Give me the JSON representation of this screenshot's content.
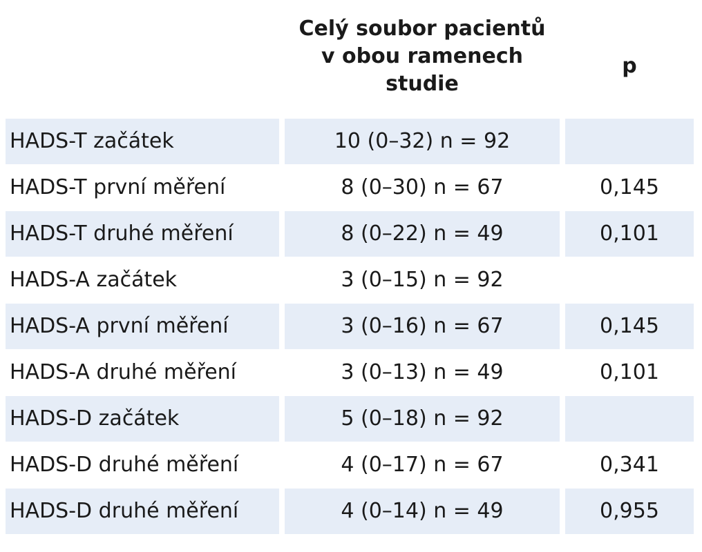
{
  "header": {
    "col_group_line1": "Celý soubor pacientů",
    "col_group_line2": "v obou ramenech",
    "col_group_line3": "studie",
    "col_p": "p"
  },
  "rows": [
    {
      "label": "HADS-T začátek",
      "value": "10 (0–32) n = 92",
      "p": "",
      "shaded": true
    },
    {
      "label": "HADS-T první měření",
      "value": "8 (0–30) n = 67",
      "p": "0,145",
      "shaded": false
    },
    {
      "label": "HADS-T druhé měření",
      "value": "8 (0–22) n = 49",
      "p": "0,101",
      "shaded": true
    },
    {
      "label": "HADS-A začátek",
      "value": "3 (0–15) n = 92",
      "p": "",
      "shaded": false
    },
    {
      "label": "HADS-A první měření",
      "value": "3 (0–16) n = 67",
      "p": "0,145",
      "shaded": true
    },
    {
      "label": "HADS-A druhé měření",
      "value": "3 (0–13) n = 49",
      "p": "0,101",
      "shaded": false
    },
    {
      "label": "HADS-D začátek",
      "value": "5 (0–18) n = 92",
      "p": "",
      "shaded": true
    },
    {
      "label": "HADS-D druhé měření",
      "value": "4 (0–17) n = 67",
      "p": "0,341",
      "shaded": false
    },
    {
      "label": "HADS-D druhé měření",
      "value": "4 (0–14) n = 49",
      "p": "0,955",
      "shaded": true
    }
  ],
  "colors": {
    "shade": "#e6edf7",
    "text": "#1a1a1a"
  }
}
